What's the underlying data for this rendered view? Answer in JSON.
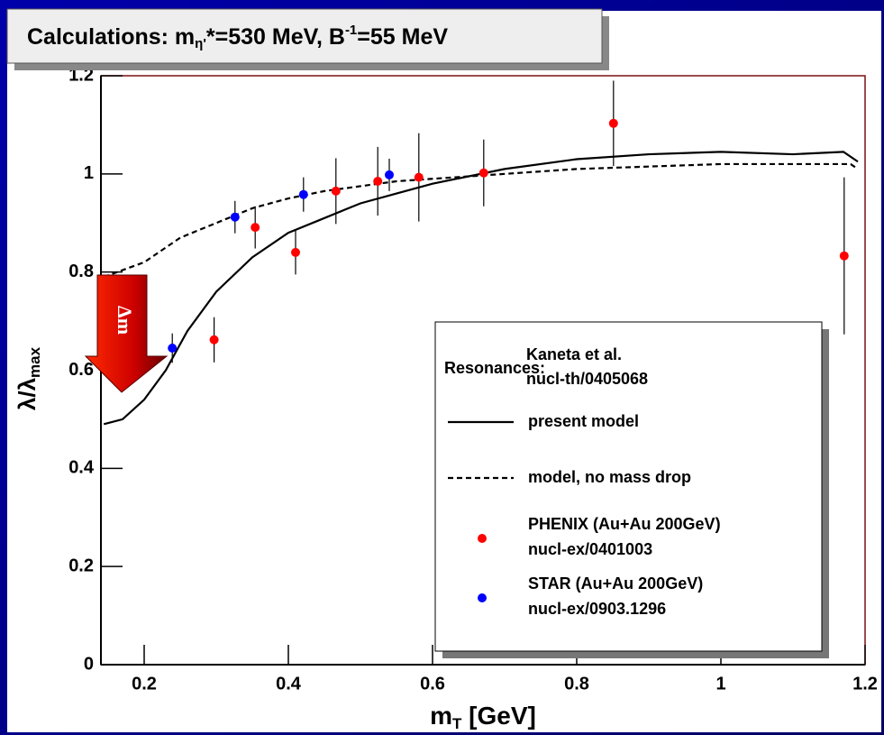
{
  "chart_data": {
    "type": "scatter",
    "title_parts": [
      "Calculations: m",
      "η'",
      "*=530 MeV, B",
      "-1",
      "=55 MeV"
    ],
    "x_label_parts": [
      "m",
      "T",
      " [GeV]"
    ],
    "y_label_parts": [
      "λ/λ",
      "max"
    ],
    "annotation": "Δm",
    "xlim": [
      0.14,
      1.2
    ],
    "ylim": [
      0,
      1.2
    ],
    "xticks": [
      0.2,
      0.4,
      0.6,
      0.8,
      1,
      1.2
    ],
    "yticks": [
      0,
      0.2,
      0.4,
      0.6,
      0.8,
      1,
      1.2
    ],
    "legend_title": "Resonances:",
    "legend_title_ref": [
      "Kaneta et al.",
      "nucl-th/0405068"
    ],
    "series": [
      {
        "name": "present model",
        "kind": "line",
        "color": "#000000",
        "dash": false,
        "x": [
          0.144,
          0.17,
          0.2,
          0.23,
          0.26,
          0.3,
          0.35,
          0.4,
          0.45,
          0.5,
          0.55,
          0.6,
          0.7,
          0.8,
          0.9,
          1.0,
          1.1,
          1.17,
          1.19
        ],
        "values": [
          0.49,
          0.5,
          0.54,
          0.6,
          0.68,
          0.76,
          0.83,
          0.88,
          0.91,
          0.94,
          0.96,
          0.98,
          1.01,
          1.03,
          1.04,
          1.045,
          1.04,
          1.045,
          1.025
        ]
      },
      {
        "name": "model, no mass drop",
        "kind": "line",
        "color": "#000000",
        "dash": true,
        "x": [
          0.144,
          0.2,
          0.25,
          0.3,
          0.35,
          0.4,
          0.45,
          0.5,
          0.55,
          0.6,
          0.7,
          0.8,
          0.9,
          1.0,
          1.1,
          1.18,
          1.19
        ],
        "values": [
          0.79,
          0.82,
          0.87,
          0.9,
          0.93,
          0.95,
          0.965,
          0.975,
          0.985,
          0.99,
          1.0,
          1.01,
          1.015,
          1.02,
          1.02,
          1.02,
          1.01
        ]
      },
      {
        "name": "PHENIX (Au+Au 200GeV)",
        "reference": "nucl-ex/0401003",
        "kind": "points",
        "color": "#ff0000",
        "x": [
          0.297,
          0.354,
          0.41,
          0.466,
          0.524,
          0.581,
          0.671,
          0.851,
          1.171
        ],
        "values": [
          0.662,
          0.891,
          0.84,
          0.965,
          0.985,
          0.993,
          1.002,
          1.103,
          0.833
        ],
        "errors": [
          0.046,
          0.043,
          0.045,
          0.067,
          0.07,
          0.09,
          0.068,
          0.087,
          0.16
        ]
      },
      {
        "name": "STAR (Au+Au 200GeV)",
        "reference": "nucl-ex/0903.1296",
        "kind": "points",
        "color": "#0000ff",
        "x": [
          0.239,
          0.326,
          0.421,
          0.54
        ],
        "values": [
          0.645,
          0.912,
          0.958,
          0.998
        ],
        "errors": [
          0.03,
          0.033,
          0.035,
          0.033
        ]
      }
    ]
  }
}
